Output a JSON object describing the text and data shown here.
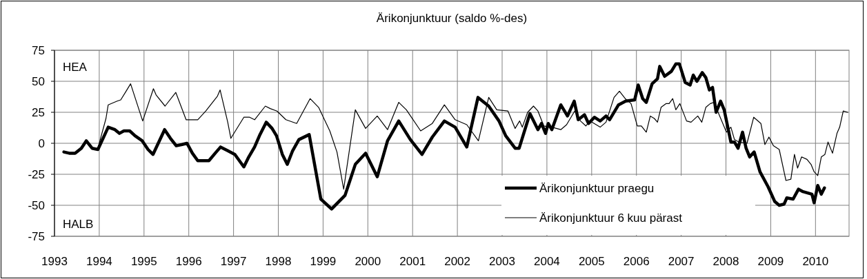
{
  "chart_data": {
    "type": "line",
    "title": "Ärikonjunktuur (saldo %-des)",
    "annotations": [
      "HEA",
      "HALB"
    ],
    "xlim": [
      1993,
      2010.75
    ],
    "xticks": [
      1993,
      1994,
      1995,
      1996,
      1997,
      1998,
      1999,
      2000,
      2001,
      2002,
      2003,
      2004,
      2005,
      2006,
      2007,
      2008,
      2009,
      2010
    ],
    "ylim": [
      -75,
      75
    ],
    "yticks": [
      -75,
      -50,
      -25,
      0,
      25,
      50,
      75
    ],
    "grid": true,
    "legend": "bottom right",
    "series": [
      {
        "name": "Ärikonjunktuur praegu",
        "color": "#000000",
        "x": [
          1993.21,
          1993.33,
          1993.46,
          1993.6,
          1993.71,
          1993.84,
          1993.97,
          1994.2,
          1994.35,
          1994.45,
          1994.55,
          1994.68,
          1994.8,
          1994.96,
          1995.09,
          1995.2,
          1995.46,
          1995.59,
          1995.72,
          1995.85,
          1995.96,
          1996.08,
          1996.2,
          1996.45,
          1996.59,
          1996.71,
          1996.87,
          1997.03,
          1997.23,
          1997.34,
          1997.47,
          1997.59,
          1997.73,
          1997.86,
          1997.96,
          1998.09,
          1998.2,
          1998.32,
          1998.46,
          1998.69,
          1998.95,
          1999.19,
          1999.49,
          1999.72,
          1999.95,
          2000.21,
          2000.44,
          2000.69,
          2000.95,
          2001.21,
          2001.44,
          2001.71,
          2001.95,
          2002.21,
          2002.46,
          2002.7,
          2002.93,
          2003.08,
          2003.29,
          2003.38,
          2003.62,
          2003.8,
          2003.88,
          2003.97,
          2004.03,
          2004.11,
          2004.31,
          2004.46,
          2004.61,
          2004.7,
          2004.84,
          2004.93,
          2005.06,
          2005.19,
          2005.32,
          2005.4,
          2005.6,
          2005.76,
          2005.96,
          2006.04,
          2006.14,
          2006.22,
          2006.35,
          2006.47,
          2006.52,
          2006.63,
          2006.78,
          2006.88,
          2006.96,
          2007.09,
          2007.2,
          2007.27,
          2007.35,
          2007.47,
          2007.55,
          2007.63,
          2007.7,
          2007.78,
          2007.88,
          2007.96,
          2008.11,
          2008.19,
          2008.27,
          2008.37,
          2008.45,
          2008.53,
          2008.63,
          2008.76,
          2008.94,
          2009.09,
          2009.19,
          2009.3,
          2009.36,
          2009.5,
          2009.62,
          2009.72,
          2009.92,
          2009.97,
          2010.05,
          2010.13,
          2010.2
        ],
        "values": [
          -7,
          -8,
          -8,
          -4,
          2,
          -4,
          -5,
          13,
          11,
          8,
          10,
          10,
          6,
          2,
          -5,
          -9,
          11,
          4,
          -2,
          -1,
          0,
          -8,
          -14,
          -14,
          -8,
          -3,
          -6,
          -9,
          -19,
          -11,
          -3,
          7,
          17,
          12,
          6,
          -9,
          -17,
          -6,
          3,
          7,
          -45,
          -53,
          -42,
          -17,
          -8,
          -27,
          2,
          18,
          3,
          -9,
          5,
          18,
          13,
          -3,
          37,
          30,
          18,
          6,
          -4,
          -4,
          24,
          11,
          16,
          8,
          16,
          11,
          31,
          22,
          34,
          19,
          23,
          16,
          21,
          18,
          22,
          19,
          31,
          34,
          35,
          47,
          36,
          33,
          48,
          52,
          62,
          54,
          58,
          64,
          64,
          49,
          47,
          55,
          50,
          57,
          53,
          43,
          45,
          25,
          34,
          27,
          1,
          1,
          -4,
          9,
          -4,
          -11,
          -7,
          -23,
          -35,
          -47,
          -50,
          -49,
          -44,
          -45,
          -37,
          -39,
          -41,
          -48,
          -34,
          -41,
          -36
        ]
      },
      {
        "name": "Ärikonjunktuur 6 kuu pärast",
        "color": "#000000",
        "x": [
          1993.97,
          1994.15,
          1994.2,
          1994.4,
          1994.48,
          1994.6,
          1994.7,
          1994.97,
          1995.21,
          1995.27,
          1995.47,
          1995.71,
          1995.94,
          1996.2,
          1996.38,
          1996.64,
          1996.7,
          1996.87,
          1996.94,
          1997.23,
          1997.36,
          1997.47,
          1997.71,
          1997.82,
          1997.97,
          1998.17,
          1998.41,
          1998.71,
          1998.9,
          1999.15,
          1999.31,
          1999.46,
          1999.72,
          1999.95,
          2000.21,
          2000.44,
          2000.69,
          2000.86,
          2001.18,
          2001.44,
          2001.71,
          2001.95,
          2002.21,
          2002.47,
          2002.7,
          2002.88,
          2003.13,
          2003.29,
          2003.39,
          2003.45,
          2003.57,
          2003.7,
          2003.8,
          2003.93,
          2004.11,
          2004.31,
          2004.44,
          2004.62,
          2004.75,
          2004.87,
          2004.96,
          2005.19,
          2005.32,
          2005.5,
          2005.62,
          2005.75,
          2005.88,
          2006.02,
          2006.11,
          2006.22,
          2006.31,
          2006.4,
          2006.47,
          2006.55,
          2006.66,
          2006.73,
          2006.81,
          2006.88,
          2006.97,
          2007.12,
          2007.22,
          2007.37,
          2007.46,
          2007.55,
          2007.65,
          2007.73,
          2007.86,
          2008.01,
          2008.11,
          2008.19,
          2008.29,
          2008.47,
          2008.62,
          2008.78,
          2008.87,
          2008.96,
          2009.06,
          2009.19,
          2009.34,
          2009.45,
          2009.53,
          2009.6,
          2009.69,
          2009.81,
          2009.9,
          2009.97,
          2010.05,
          2010.13,
          2010.21,
          2010.28,
          2010.38,
          2010.48,
          2010.54,
          2010.62,
          2010.72
        ],
        "values": [
          -4,
          20,
          31,
          34,
          35,
          42,
          48,
          18,
          44,
          39,
          30,
          41,
          19,
          19,
          26,
          38,
          43,
          17,
          4,
          21,
          21,
          19,
          30,
          28,
          26,
          19,
          16,
          36,
          29,
          10,
          -7,
          -37,
          27,
          12,
          22,
          11,
          33,
          27,
          10,
          16,
          31,
          19,
          15,
          2,
          37,
          27,
          26,
          12,
          18,
          13,
          25,
          30,
          26,
          14,
          13,
          11,
          15,
          26,
          18,
          14,
          18,
          13,
          17,
          37,
          42,
          36,
          32,
          14,
          14,
          9,
          22,
          20,
          17,
          29,
          32,
          32,
          36,
          27,
          32,
          18,
          17,
          22,
          17,
          29,
          32,
          33,
          22,
          9,
          13,
          3,
          1,
          0,
          21,
          16,
          -1,
          5,
          -2,
          -5,
          -30,
          -29,
          -9,
          -20,
          -11,
          -13,
          -17,
          -23,
          -26,
          -11,
          -9,
          1,
          -8,
          8,
          13,
          26,
          25
        ]
      }
    ]
  }
}
